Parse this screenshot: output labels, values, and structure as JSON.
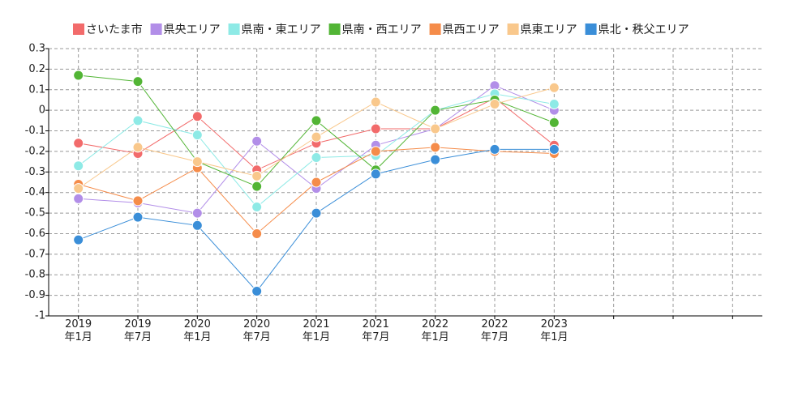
{
  "chart_data": {
    "type": "line",
    "categories": [
      "2019年1月",
      "2019年7月",
      "2020年1月",
      "2020年7月",
      "2021年1月",
      "2021年7月",
      "2022年1月",
      "2022年7月",
      "2023年1月",
      null,
      null,
      null
    ],
    "series": [
      {
        "name": "さいたま市",
        "color": "#f26b6b",
        "values": [
          -0.16,
          -0.21,
          -0.03,
          -0.29,
          -0.16,
          -0.09,
          -0.09,
          0.06,
          -0.17,
          null,
          null,
          null
        ]
      },
      {
        "name": "県央エリア",
        "color": "#b28ee8",
        "values": [
          -0.43,
          -0.45,
          -0.5,
          -0.15,
          -0.38,
          -0.17,
          -0.09,
          0.12,
          0,
          null,
          null,
          null
        ]
      },
      {
        "name": "県南・東エリア",
        "color": "#8eeae6",
        "values": [
          -0.27,
          -0.05,
          -0.12,
          -0.47,
          -0.23,
          -0.22,
          0,
          0.08,
          0.03,
          null,
          null,
          null
        ]
      },
      {
        "name": "県南・西エリア",
        "color": "#52b535",
        "values": [
          0.17,
          0.14,
          -0.25,
          -0.37,
          -0.05,
          -0.29,
          0,
          0.05,
          -0.06,
          null,
          null,
          null
        ]
      },
      {
        "name": "県西エリア",
        "color": "#f58c4a",
        "values": [
          -0.36,
          -0.44,
          -0.28,
          -0.6,
          -0.35,
          -0.2,
          -0.18,
          -0.2,
          -0.21,
          null,
          null,
          null
        ]
      },
      {
        "name": "県東エリア",
        "color": "#f9c88c",
        "values": [
          -0.38,
          -0.18,
          -0.25,
          -0.32,
          -0.13,
          0.04,
          -0.09,
          0.03,
          0.11,
          null,
          null,
          null
        ]
      },
      {
        "name": "県北・秩父エリア",
        "color": "#3a8ed8",
        "values": [
          -0.63,
          -0.52,
          -0.56,
          -0.88,
          -0.5,
          -0.31,
          -0.24,
          -0.19,
          -0.19,
          null,
          null,
          null
        ]
      }
    ],
    "ylim": [
      -1,
      0.3
    ],
    "yticks": [
      0.3,
      0.2,
      0.1,
      0,
      -0.1,
      -0.2,
      -0.3,
      -0.4,
      -0.5,
      -0.6,
      -0.7,
      -0.8,
      -0.9,
      -1
    ],
    "grid": true
  }
}
